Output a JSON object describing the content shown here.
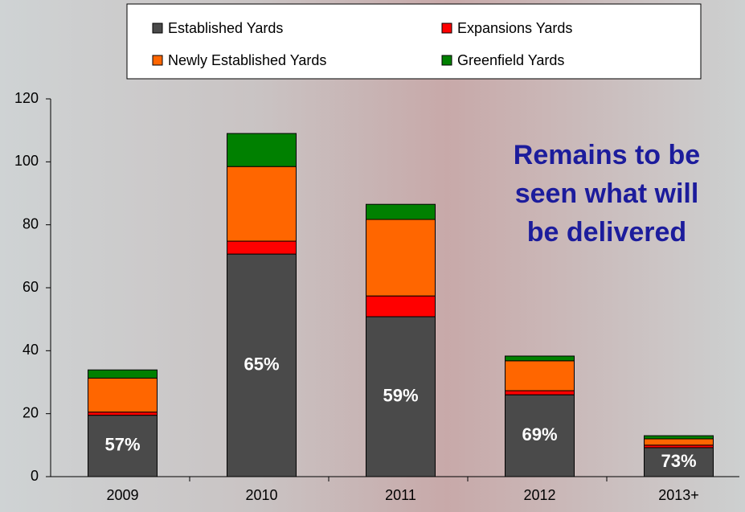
{
  "chart_data": {
    "type": "stacked_bar",
    "categories": [
      "2009",
      "2010",
      "2011",
      "2012",
      "2013+"
    ],
    "series": [
      {
        "name": "Established Yards",
        "color": "#4a4a4a",
        "values": [
          19.5,
          70.7,
          50.8,
          26,
          9.2
        ]
      },
      {
        "name": "Expansions Yards",
        "color": "#ff0000",
        "values": [
          1.0,
          4.1,
          6.6,
          1.3,
          0.8
        ]
      },
      {
        "name": "Newly Established Yards",
        "color": "#ff6600",
        "values": [
          10.8,
          23.7,
          24.3,
          9.5,
          2.0
        ]
      },
      {
        "name": "Greenfield Yards",
        "color": "#008000",
        "values": [
          2.6,
          10.5,
          4.8,
          1.5,
          1.0
        ]
      }
    ],
    "share_labels": [
      "57%",
      "65%",
      "59%",
      "69%",
      "73%"
    ],
    "annotation": [
      "Remains to be",
      "seen what will",
      "be delivered"
    ],
    "annotation_color": "#1c1c9c",
    "ylim": [
      0,
      120
    ],
    "yticks": [
      0,
      20,
      40,
      60,
      80,
      100,
      120
    ],
    "grid": false
  }
}
